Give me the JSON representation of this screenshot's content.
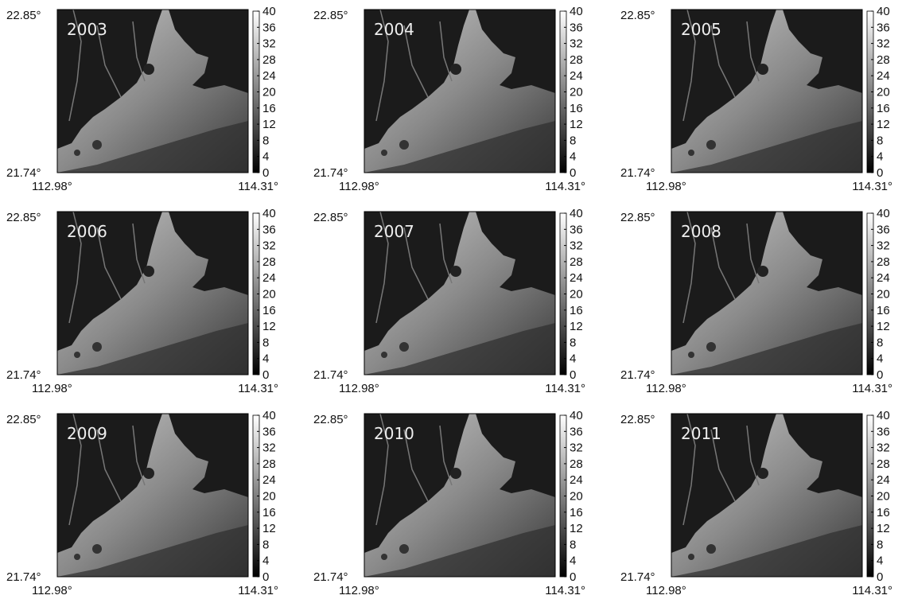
{
  "colorbar": {
    "lim": [
      0,
      40
    ],
    "ticks": [
      0,
      4,
      8,
      12,
      16,
      20,
      24,
      28,
      32,
      36,
      40
    ]
  },
  "panels": [
    {
      "year": "2003",
      "lat_top": "22.85°",
      "lat_bottom": "21.74°",
      "lon_left": "112.98°",
      "lon_right": "114.31°"
    },
    {
      "year": "2004",
      "lat_top": "22.85°",
      "lat_bottom": "21.74°",
      "lon_left": "112.98°",
      "lon_right": "114.31°"
    },
    {
      "year": "2005",
      "lat_top": "22.85°",
      "lat_bottom": "21.74°",
      "lon_left": "112.98°",
      "lon_right": "114.31°"
    },
    {
      "year": "2006",
      "lat_top": "22.85°",
      "lat_bottom": "21.74°",
      "lon_left": "112.98°",
      "lon_right": "114.31°"
    },
    {
      "year": "2007",
      "lat_top": "22.85°",
      "lat_bottom": "21.74°",
      "lon_left": "112.98°",
      "lon_right": "114.31°"
    },
    {
      "year": "2008",
      "lat_top": "22.85°",
      "lat_bottom": "21.74°",
      "lon_left": "112.98°",
      "lon_right": "114.31°"
    },
    {
      "year": "2009",
      "lat_top": "22.85°",
      "lat_bottom": "21.74°",
      "lon_left": "112.98°",
      "lon_right": "114.31°"
    },
    {
      "year": "2010",
      "lat_top": "22.85°",
      "lat_bottom": "21.74°",
      "lon_left": "112.98°",
      "lon_right": "114.31°"
    },
    {
      "year": "2011",
      "lat_top": "22.85°",
      "lat_bottom": "21.74°",
      "lon_left": "112.98°",
      "lon_right": "114.31°"
    }
  ]
}
